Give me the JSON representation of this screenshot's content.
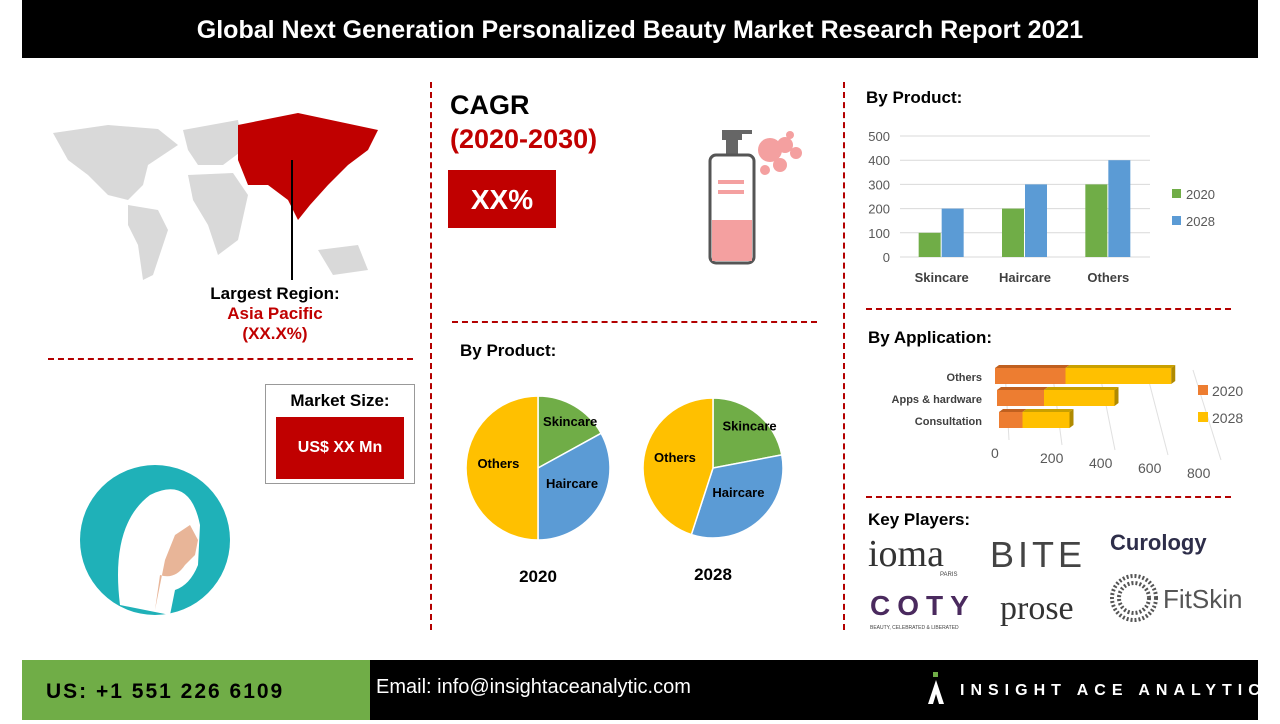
{
  "title": "Global Next Generation Personalized Beauty Market Research Report 2021",
  "region": {
    "label": "Largest Region:",
    "name": "Asia Pacific",
    "share": "(XX.X%)"
  },
  "market_size": {
    "label": "Market Size:",
    "value": "US$  XX Mn"
  },
  "cagr": {
    "label": "CAGR",
    "period": "(2020-2030)",
    "value": "XX%"
  },
  "colors": {
    "accent": "#c00000",
    "green": "#70ad47",
    "blue": "#5b9bd5",
    "orange": "#ed7d31",
    "yellow": "#ffc000",
    "teal": "#1fb1b8"
  },
  "chart_data": [
    {
      "type": "pie",
      "title": "By Product:",
      "caption": "2020",
      "categories": [
        "Skincare",
        "Haircare",
        "Others"
      ],
      "values": [
        17,
        33,
        50
      ],
      "colors": [
        "#70ad47",
        "#5b9bd5",
        "#ffc000"
      ]
    },
    {
      "type": "pie",
      "caption": "2028",
      "categories": [
        "Skincare",
        "Haircare",
        "Others"
      ],
      "values": [
        22,
        33,
        45
      ],
      "colors": [
        "#70ad47",
        "#5b9bd5",
        "#ffc000"
      ]
    },
    {
      "type": "bar",
      "title": "By Product:",
      "categories": [
        "Skincare",
        "Haircare",
        "Others"
      ],
      "series": [
        {
          "name": "2020",
          "values": [
            100,
            200,
            300
          ],
          "color": "#70ad47"
        },
        {
          "name": "2028",
          "values": [
            200,
            300,
            400
          ],
          "color": "#5b9bd5"
        }
      ],
      "ylim": [
        0,
        500
      ],
      "yticks": [
        0,
        100,
        200,
        300,
        400,
        500
      ],
      "grid": true,
      "legend": "right"
    },
    {
      "type": "bar",
      "orientation": "horizontal-stacked-3d",
      "title": "By Application:",
      "categories": [
        "Others",
        "Apps & hardware",
        "Consultation"
      ],
      "series": [
        {
          "name": "2020",
          "values": [
            300,
            200,
            100
          ],
          "color": "#ed7d31"
        },
        {
          "name": "2028",
          "values": [
            450,
            300,
            200
          ],
          "color": "#ffc000"
        }
      ],
      "xlim": [
        0,
        800
      ],
      "xticks": [
        0,
        200,
        400,
        600,
        800
      ],
      "legend": "right"
    }
  ],
  "key_players": {
    "label": "Key Players:",
    "logos": [
      "ioma",
      "PARIS",
      "BITE",
      "Curology",
      "COTY",
      "BEAUTY, CELEBRATED & LIBERATED",
      "prose",
      "FitSkin"
    ]
  },
  "footer": {
    "phone": "US: +1 551 226 6109",
    "email": "Email: info@insightaceanalytic.com",
    "brand": "INSIGHT ACE ANALYTIC"
  }
}
